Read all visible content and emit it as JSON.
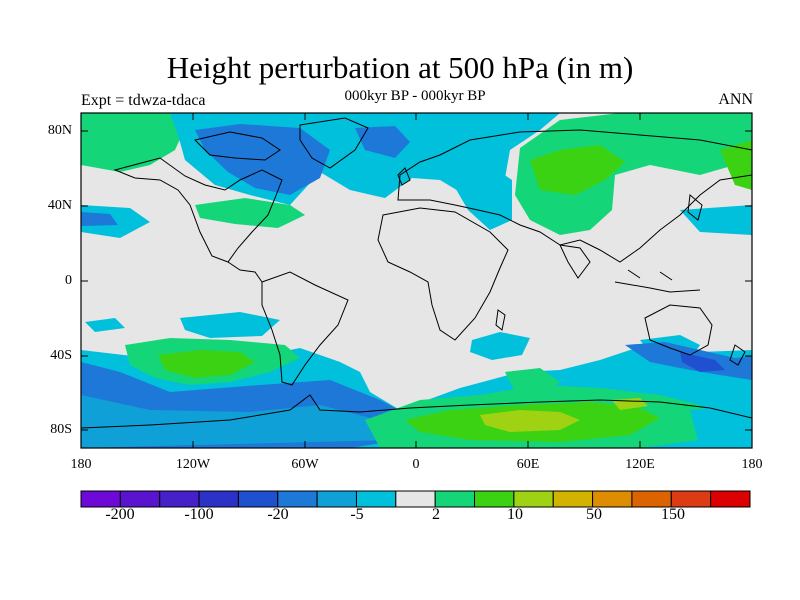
{
  "title": "Height perturbation at 500 hPa (in m)",
  "subtitle": "000kyr BP - 000kyr BP",
  "left_string": "Expt = tdwza-tdaca",
  "right_string": "ANN",
  "map": {
    "lat_ticks": [
      "80N",
      "40N",
      "0",
      "40S",
      "80S"
    ],
    "lon_ticks": [
      "180",
      "120W",
      "60W",
      "0",
      "60E",
      "120E",
      "180"
    ],
    "background_color": "#e6e6e6"
  },
  "colorbar": {
    "colors": [
      "#6e0ad8",
      "#5a14d0",
      "#4620c8",
      "#2c32c8",
      "#1e50d0",
      "#1e78d8",
      "#10a0d8",
      "#00c0dc",
      "#e6e6e6",
      "#14d678",
      "#3cd214",
      "#a0d214",
      "#d2b400",
      "#de8c00",
      "#dc6400",
      "#dc3c14",
      "#dc0000"
    ],
    "labels": [
      "-200",
      "-100",
      "-20",
      "-5",
      "2",
      "10",
      "50",
      "150"
    ]
  }
}
